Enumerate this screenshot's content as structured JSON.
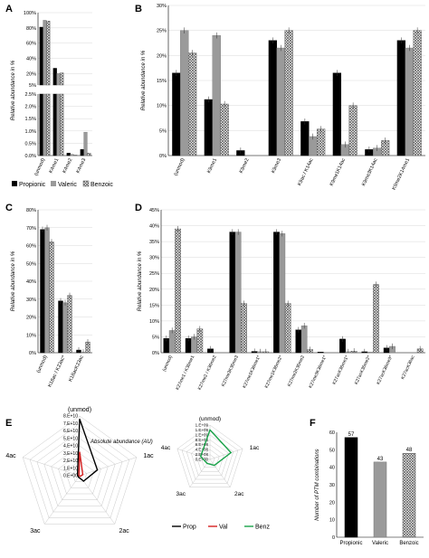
{
  "colors": {
    "propionic": "#000000",
    "valeric": "#9a9a9a",
    "benzoic": "#ffffff",
    "hatch": "#555555",
    "val_line": "#d62020",
    "benz_line": "#1aa34a"
  },
  "chart_data": [
    {
      "panel": "A",
      "type": "bar",
      "ylabel": "Relative abundance in %",
      "categories": [
        "(unmod)",
        "K4me1",
        "K4me2",
        "K4me3"
      ],
      "yticks_upper": [
        "100%",
        "80%",
        "60%",
        "40%",
        "20%",
        "5%"
      ],
      "yticks_lower": [
        "2.5%",
        "2.0%",
        "1.5%",
        "1.0%",
        "0.5%",
        "0.0%"
      ],
      "series": [
        {
          "name": "Propionic",
          "values": [
            81,
            27,
            0.1,
            0.25
          ]
        },
        {
          "name": "Valeric",
          "values": [
            90,
            20,
            0.05,
            0.95
          ]
        },
        {
          "name": "Benzoic",
          "values": [
            89,
            21,
            0.02,
            0.1
          ]
        }
      ]
    },
    {
      "panel": "B",
      "type": "bar",
      "ylabel": "Relative abundance in %",
      "ylim": [
        0,
        30
      ],
      "yticks": [
        "0%",
        "5%",
        "10%",
        "15%",
        "20%",
        "25%",
        "30%"
      ],
      "categories": [
        "(unmod)",
        "K9me1",
        "K9me2",
        "K9me3",
        "K9ac / K14ac",
        "K9me1K14ac",
        "K9me3K14ac",
        "K9me2K14me1"
      ],
      "series": [
        {
          "name": "Propionic",
          "values": [
            16.5,
            11.2,
            1.0,
            23.0,
            6.8,
            16.5,
            1.2,
            23.0
          ]
        },
        {
          "name": "Valeric",
          "values": [
            25.0,
            24.0,
            0.0,
            21.5,
            3.8,
            2.2,
            1.5,
            21.5
          ]
        },
        {
          "name": "Benzoic",
          "values": [
            20.5,
            10.3,
            0.0,
            25.0,
            5.3,
            10.0,
            3.0,
            25.0
          ]
        }
      ]
    },
    {
      "panel": "C",
      "type": "bar",
      "ylabel": "Relative abundance in %",
      "ylim": [
        0,
        80
      ],
      "yticks": [
        "0%",
        "10%",
        "20%",
        "30%",
        "40%",
        "50%",
        "60%",
        "70%",
        "80%"
      ],
      "categories": [
        "(unmod)",
        "K18ac / K23ac*",
        "K18acK23ac"
      ],
      "series": [
        {
          "name": "Propionic",
          "values": [
            69,
            29,
            1.5
          ]
        },
        {
          "name": "Valeric",
          "values": [
            70,
            28,
            0.3
          ]
        },
        {
          "name": "Benzoic",
          "values": [
            62,
            32,
            6
          ]
        }
      ]
    },
    {
      "panel": "D",
      "type": "bar",
      "ylabel": "Relative abundance in %",
      "ylim": [
        0,
        45
      ],
      "yticks": [
        "0%",
        "5%",
        "10%",
        "15%",
        "20%",
        "25%",
        "30%",
        "35%",
        "40%",
        "45%"
      ],
      "categories": [
        "(unmod)",
        "K27me1 / K36me1",
        "K27me2 / K36me2",
        "K27me3K36me3",
        "K27me1K36me1*",
        "K27me1K36me2*",
        "K27me2K36me2",
        "K27me3K36me1*",
        "K27acK36me1*",
        "K27acK36me2*",
        "K27acK36me3*",
        "K27acK36ac"
      ],
      "series": [
        {
          "name": "Propionic",
          "values": [
            4.5,
            4.5,
            1.2,
            38.0,
            0.4,
            38.0,
            7.2,
            0.2,
            4.3,
            0.3,
            1.5,
            0.0
          ]
        },
        {
          "name": "Valeric",
          "values": [
            7.0,
            5.0,
            0.0,
            38.0,
            0.3,
            37.5,
            8.5,
            0.0,
            0.3,
            0.2,
            2.0,
            0.0
          ]
        },
        {
          "name": "Benzoic",
          "values": [
            39.0,
            7.5,
            0.0,
            15.5,
            0.3,
            15.5,
            1.0,
            0.0,
            0.5,
            21.5,
            0.0,
            1.2
          ]
        }
      ]
    },
    {
      "panel": "E",
      "type": "radar",
      "axes": [
        "(unmod)",
        "1ac",
        "2ac",
        "3ac",
        "4ac"
      ],
      "annotation": "Absolute abundance (AU)",
      "rticks": [
        "0.E+00",
        "1.E+10",
        "2.E+10",
        "3.E+10",
        "4.E+10",
        "5.E+10",
        "6.E+10",
        "7.E+10",
        "8.E+10"
      ],
      "rmax": 80000000000.0,
      "series": [
        {
          "name": "Prop",
          "values": [
            76000000000.0,
            25000000000.0,
            9000000000.0,
            2500000000.0,
            3000000000.0
          ]
        },
        {
          "name": "Val",
          "values": [
            32000000000.0,
            4500000000.0,
            1000000000.0,
            500000000.0,
            1000000000.0
          ]
        }
      ],
      "inset": {
        "axes": [
          "(unmod)",
          "1ac",
          "2ac",
          "3ac",
          "4ac"
        ],
        "rticks": [
          "0.E+00",
          "2.E+08",
          "4.E+08",
          "6.E+08",
          "8.E+08",
          "1.E+09",
          "1.E+09",
          "1.E+09"
        ],
        "rmax": 1400000000.0,
        "series": [
          {
            "name": "Benz",
            "values": [
              1200000000.0,
              900000000.0,
              300000000.0,
              200000000.0,
              400000000.0
            ]
          }
        ]
      },
      "legend": [
        "Prop",
        "Val",
        "Benz"
      ]
    },
    {
      "panel": "F",
      "type": "bar",
      "ylabel": "Number of PTM combinations",
      "ylim": [
        0,
        60
      ],
      "yticks": [
        "0",
        "10",
        "20",
        "30",
        "40",
        "50",
        "60"
      ],
      "categories": [
        "Propionic",
        "Valeric",
        "Benzoic"
      ],
      "values": [
        57,
        43,
        48
      ]
    }
  ],
  "legend_abc": [
    "Propionic",
    "Valeric",
    "Benzoic"
  ]
}
